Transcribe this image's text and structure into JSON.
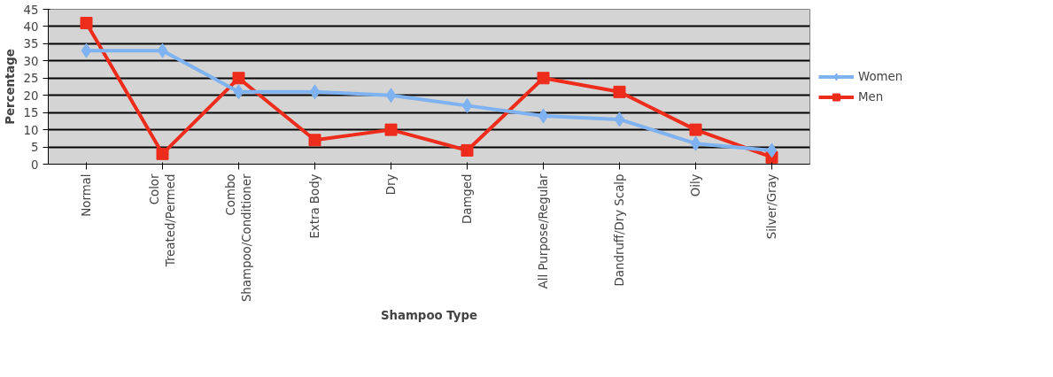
{
  "chart_data": {
    "type": "line",
    "xlabel": "Shampoo Type",
    "ylabel": "Percentage",
    "categories": [
      "Normal",
      "Color Treated/Permed",
      "Combo Shampoo/Conditioner",
      "Extra Body",
      "Dry",
      "Damged",
      "All Purpose/Regular",
      "Dandruff/Dry Scalp",
      "Oily",
      "Silver/Gray"
    ],
    "series": [
      {
        "name": "Women",
        "color": "#7fb2f0",
        "marker": "diamond",
        "values": [
          33,
          33,
          21,
          21,
          20,
          17,
          14,
          13,
          6,
          4
        ]
      },
      {
        "name": "Men",
        "color": "#ee2c1c",
        "marker": "square",
        "values": [
          41,
          3,
          25,
          7,
          10,
          4,
          25,
          21,
          10,
          2
        ]
      }
    ],
    "ylim": [
      0,
      45
    ],
    "yticks": [
      0,
      5,
      10,
      15,
      20,
      25,
      30,
      35,
      40,
      45
    ],
    "grid": "y",
    "legend": "right"
  }
}
